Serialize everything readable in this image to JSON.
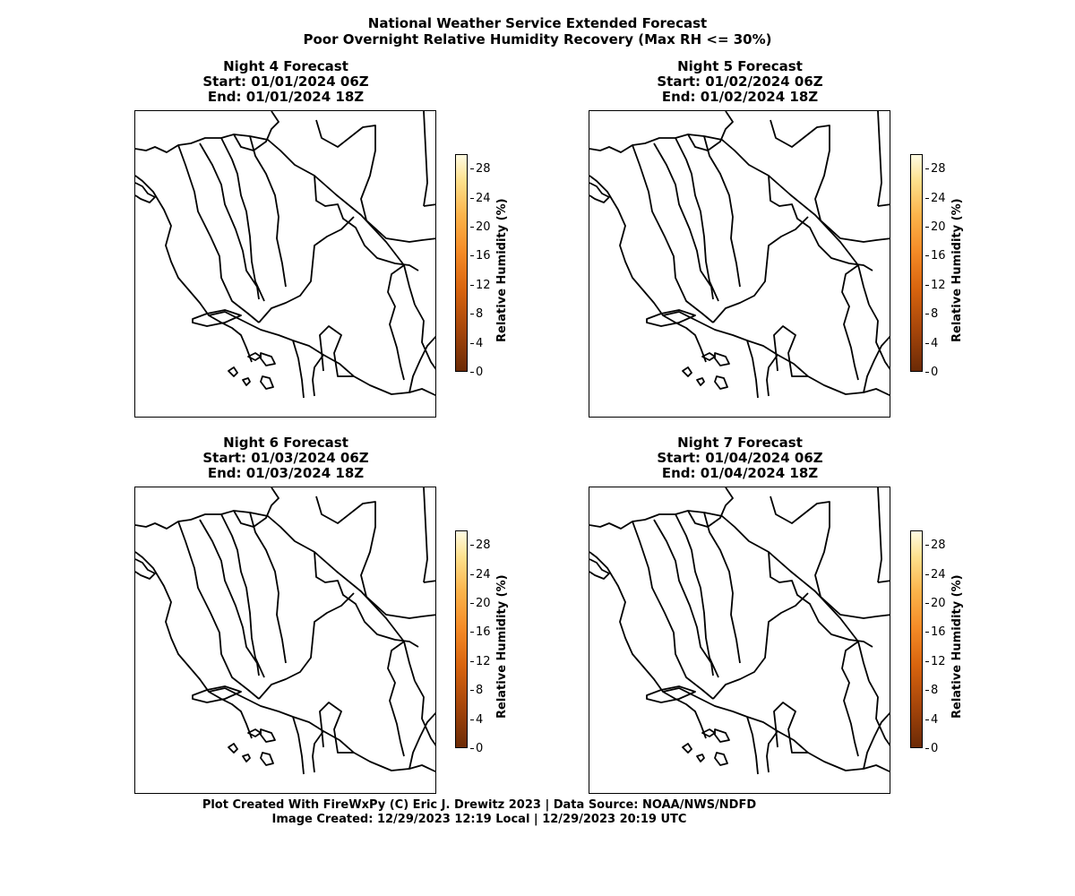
{
  "header": {
    "title": "National Weather Service Extended Forecast",
    "subtitle": "Poor Overnight Relative Humidity Recovery (Max RH <= 30%)"
  },
  "panels": [
    {
      "title": "Night 4 Forecast",
      "start": "Start: 01/01/2024 06Z",
      "end": "End: 01/01/2024 18Z"
    },
    {
      "title": "Night 5 Forecast",
      "start": "Start: 01/02/2024 06Z",
      "end": "End: 01/02/2024 18Z"
    },
    {
      "title": "Night 6 Forecast",
      "start": "Start: 01/03/2024 06Z",
      "end": "End: 01/03/2024 18Z"
    },
    {
      "title": "Night 7 Forecast",
      "start": "Start: 01/04/2024 06Z",
      "end": "End: 01/04/2024 18Z"
    }
  ],
  "colorbar": {
    "label": "Relative Humidity (%)",
    "ticks": [
      "0",
      "4",
      "8",
      "12",
      "16",
      "20",
      "24",
      "28"
    ],
    "min": 0,
    "max": 30,
    "colormap": [
      "#6b2a06",
      "#a3440a",
      "#d8640e",
      "#f48a26",
      "#fbb34a",
      "#fde08c",
      "#fffbe2"
    ]
  },
  "footer": {
    "line1": "Plot Created With FireWxPy (C) Eric J. Drewitz 2023 | Data Source: NOAA/NWS/NDFD",
    "line2": "Image Created: 12/29/2023 12:19 Local | 12/29/2023 20:19 UTC"
  }
}
